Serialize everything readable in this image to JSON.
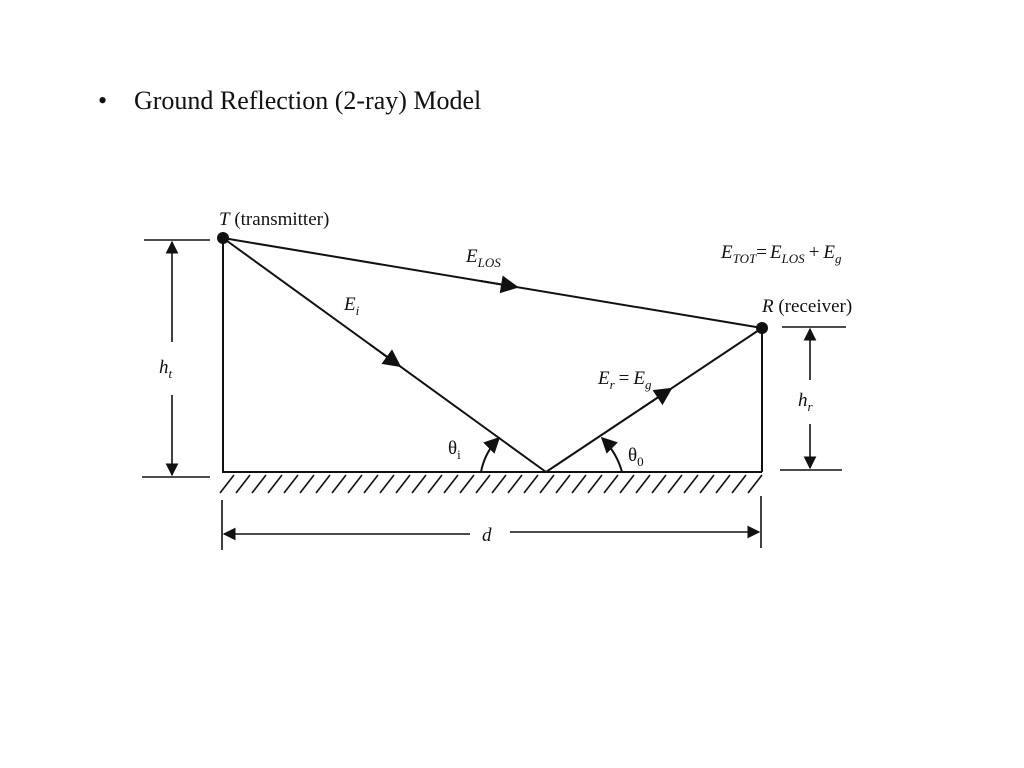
{
  "slide": {
    "bullet": "•",
    "title": "Ground Reflection (2-ray) Model"
  },
  "diagram": {
    "transmitter": {
      "symbol": "T",
      "description": "(transmitter)"
    },
    "receiver": {
      "symbol": "R",
      "description": "(receiver)"
    },
    "los_ray": {
      "symbol": "E",
      "subscript": "LOS"
    },
    "incident_ray": {
      "symbol": "E",
      "subscript": "i"
    },
    "reflected_ray": {
      "symbol": "E",
      "subscript": "r",
      "equals": "=",
      "symbol2": "E",
      "subscript2": "g"
    },
    "total_field": {
      "symbol": "E",
      "subscript": "TOT",
      "equals": "=",
      "term1_symbol": "E",
      "term1_subscript": "LOS",
      "plus": "+",
      "term2_symbol": "E",
      "term2_subscript": "g"
    },
    "transmitter_height": {
      "symbol": "h",
      "subscript": "t"
    },
    "receiver_height": {
      "symbol": "h",
      "subscript": "r"
    },
    "incidence_angle": {
      "symbol": "θ",
      "subscript": "i"
    },
    "reflection_angle": {
      "symbol": "θ",
      "subscript": "0"
    },
    "distance": {
      "symbol": "d"
    }
  }
}
